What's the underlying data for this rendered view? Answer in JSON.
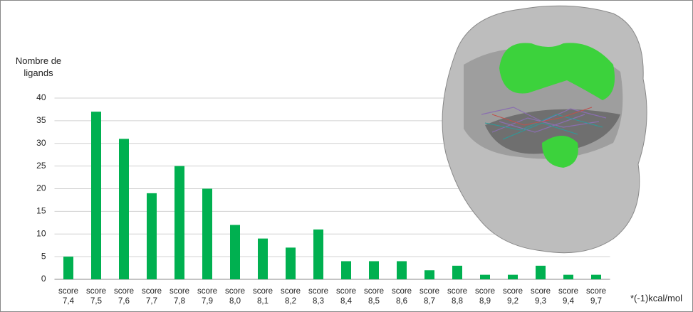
{
  "chart_data": {
    "type": "bar",
    "y_label": "Nombre de ligands",
    "x_label": "*(-1)kcal/mol",
    "categories": [
      "score 7,4",
      "score 7,5",
      "score 7,6",
      "score 7,7",
      "score 7,8",
      "score 7,9",
      "score 8,0",
      "score 8,1",
      "score 8,2",
      "score 8,3",
      "score 8,4",
      "score 8,5",
      "score 8,6",
      "score 8,7",
      "score 8,8",
      "score 8,9",
      "score 9,2",
      "score 9,3",
      "score 9,4",
      "score 9,7"
    ],
    "values": [
      5,
      37,
      31,
      19,
      25,
      20,
      12,
      9,
      7,
      11,
      4,
      4,
      4,
      2,
      3,
      1,
      1,
      3,
      1,
      1
    ],
    "color": "#00b050",
    "ylim": [
      0,
      40
    ],
    "yticks": [
      0,
      5,
      10,
      15,
      20,
      25,
      30,
      35,
      40
    ],
    "grid": true
  }
}
